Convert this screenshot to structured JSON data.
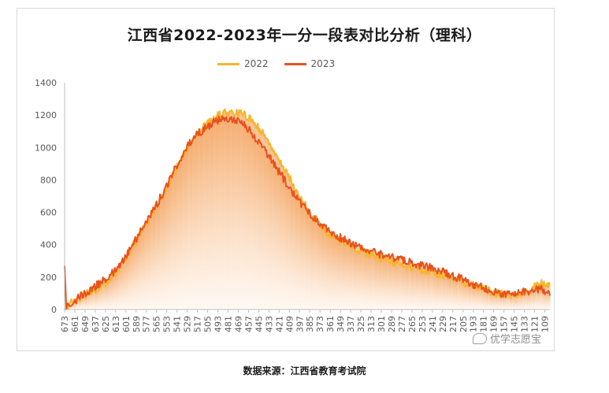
{
  "chart_data": {
    "type": "bar",
    "title": "江西省2022-2023年一分一段表对比分析（理科）",
    "footnote": "数据来源：江西省教育考试院",
    "watermark": "优学志愿宝",
    "xlabel": "",
    "ylabel": "",
    "ylim": [
      0,
      1400
    ],
    "yticks": [
      0,
      200,
      400,
      600,
      800,
      1000,
      1200,
      1400
    ],
    "x_range": [
      673,
      103
    ],
    "x_tick_labels": [
      "673",
      "661",
      "649",
      "637",
      "625",
      "613",
      "601",
      "589",
      "577",
      "565",
      "553",
      "541",
      "529",
      "517",
      "505",
      "493",
      "481",
      "469",
      "457",
      "445",
      "433",
      "421",
      "409",
      "397",
      "385",
      "373",
      "361",
      "349",
      "337",
      "325",
      "313",
      "301",
      "289",
      "277",
      "265",
      "253",
      "241",
      "229",
      "217",
      "205",
      "193",
      "181",
      "169",
      "157",
      "145",
      "133",
      "121",
      "109"
    ],
    "grid": false,
    "legend_position": "top",
    "series": [
      {
        "name": "2022",
        "color": "#f7b52c",
        "points": [
          [
            673,
            0
          ],
          [
            665,
            40
          ],
          [
            655,
            70
          ],
          [
            645,
            100
          ],
          [
            635,
            130
          ],
          [
            625,
            165
          ],
          [
            615,
            215
          ],
          [
            605,
            280
          ],
          [
            595,
            370
          ],
          [
            585,
            460
          ],
          [
            575,
            550
          ],
          [
            565,
            640
          ],
          [
            555,
            730
          ],
          [
            545,
            840
          ],
          [
            535,
            940
          ],
          [
            525,
            1030
          ],
          [
            515,
            1100
          ],
          [
            505,
            1150
          ],
          [
            495,
            1190
          ],
          [
            485,
            1215
          ],
          [
            475,
            1220
          ],
          [
            465,
            1210
          ],
          [
            455,
            1180
          ],
          [
            445,
            1120
          ],
          [
            435,
            1050
          ],
          [
            425,
            960
          ],
          [
            415,
            870
          ],
          [
            405,
            770
          ],
          [
            395,
            680
          ],
          [
            385,
            600
          ],
          [
            375,
            540
          ],
          [
            365,
            480
          ],
          [
            355,
            440
          ],
          [
            345,
            410
          ],
          [
            335,
            385
          ],
          [
            325,
            360
          ],
          [
            315,
            340
          ],
          [
            305,
            320
          ],
          [
            295,
            305
          ],
          [
            285,
            290
          ],
          [
            275,
            275
          ],
          [
            265,
            260
          ],
          [
            255,
            245
          ],
          [
            245,
            235
          ],
          [
            235,
            220
          ],
          [
            225,
            205
          ],
          [
            215,
            190
          ],
          [
            205,
            170
          ],
          [
            195,
            150
          ],
          [
            185,
            135
          ],
          [
            175,
            115
          ],
          [
            165,
            100
          ],
          [
            155,
            90
          ],
          [
            145,
            90
          ],
          [
            135,
            100
          ],
          [
            125,
            130
          ],
          [
            115,
            160
          ],
          [
            105,
            155
          ],
          [
            103,
            150
          ]
        ]
      },
      {
        "name": "2023",
        "color": "#e8521c",
        "points": [
          [
            673,
            280
          ],
          [
            671,
            10
          ],
          [
            665,
            40
          ],
          [
            655,
            80
          ],
          [
            645,
            110
          ],
          [
            635,
            150
          ],
          [
            625,
            185
          ],
          [
            615,
            235
          ],
          [
            605,
            300
          ],
          [
            595,
            380
          ],
          [
            585,
            470
          ],
          [
            575,
            560
          ],
          [
            565,
            650
          ],
          [
            555,
            740
          ],
          [
            545,
            850
          ],
          [
            535,
            950
          ],
          [
            525,
            1040
          ],
          [
            515,
            1090
          ],
          [
            505,
            1130
          ],
          [
            495,
            1165
          ],
          [
            485,
            1175
          ],
          [
            475,
            1170
          ],
          [
            465,
            1150
          ],
          [
            455,
            1100
          ],
          [
            445,
            1030
          ],
          [
            435,
            960
          ],
          [
            425,
            880
          ],
          [
            415,
            800
          ],
          [
            405,
            720
          ],
          [
            395,
            650
          ],
          [
            385,
            590
          ],
          [
            375,
            540
          ],
          [
            365,
            500
          ],
          [
            355,
            460
          ],
          [
            345,
            430
          ],
          [
            335,
            405
          ],
          [
            325,
            380
          ],
          [
            315,
            360
          ],
          [
            305,
            345
          ],
          [
            295,
            330
          ],
          [
            285,
            318
          ],
          [
            275,
            305
          ],
          [
            265,
            290
          ],
          [
            255,
            275
          ],
          [
            245,
            260
          ],
          [
            235,
            245
          ],
          [
            225,
            225
          ],
          [
            215,
            205
          ],
          [
            205,
            185
          ],
          [
            195,
            160
          ],
          [
            185,
            140
          ],
          [
            175,
            120
          ],
          [
            165,
            105
          ],
          [
            155,
            95
          ],
          [
            145,
            95
          ],
          [
            135,
            105
          ],
          [
            125,
            120
          ],
          [
            115,
            130
          ],
          [
            105,
            110
          ],
          [
            103,
            100
          ]
        ]
      }
    ]
  }
}
